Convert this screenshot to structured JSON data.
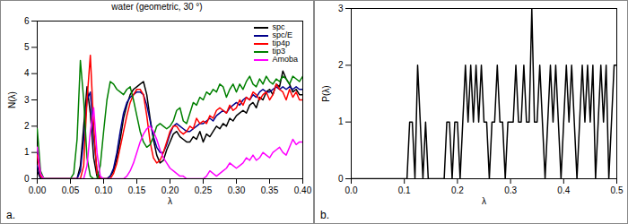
{
  "chart_data": [
    {
      "type": "line",
      "title": "water (geometric, 30 °)",
      "caption": "a.",
      "x_label": "λ",
      "y_label": "N(λ)",
      "legend": "top-right",
      "x": [
        0,
        0.005,
        0.01,
        0.015,
        0.02,
        0.025,
        0.03,
        0.035,
        0.04,
        0.045,
        0.05,
        0.055,
        0.06,
        0.065,
        0.07,
        0.075,
        0.08,
        0.085,
        0.09,
        0.095,
        0.1,
        0.105,
        0.11,
        0.115,
        0.12,
        0.125,
        0.13,
        0.135,
        0.14,
        0.145,
        0.15,
        0.155,
        0.16,
        0.165,
        0.17,
        0.175,
        0.18,
        0.185,
        0.19,
        0.195,
        0.2,
        0.205,
        0.21,
        0.215,
        0.22,
        0.225,
        0.23,
        0.235,
        0.24,
        0.245,
        0.25,
        0.255,
        0.26,
        0.265,
        0.27,
        0.275,
        0.28,
        0.285,
        0.29,
        0.295,
        0.3,
        0.305,
        0.31,
        0.315,
        0.32,
        0.325,
        0.33,
        0.335,
        0.34,
        0.345,
        0.35,
        0.355,
        0.36,
        0.365,
        0.37,
        0.375,
        0.38,
        0.385,
        0.39,
        0.395,
        0.4
      ],
      "series": [
        {
          "name": "spc",
          "color": "#000000",
          "values": [
            0.3,
            0,
            0,
            0,
            0,
            0,
            0,
            0,
            0,
            0,
            0,
            0,
            0,
            0.5,
            2.0,
            3.5,
            2.5,
            0.8,
            0.1,
            0,
            0,
            0,
            0.1,
            0.3,
            0.8,
            1.5,
            2.3,
            2.8,
            3.2,
            3.4,
            3.5,
            3.6,
            3.7,
            3.2,
            2.3,
            1.5,
            0.9,
            0.6,
            0.7,
            1.1,
            1.4,
            1.7,
            1.8,
            1.6,
            1.5,
            1.4,
            1.4,
            1.6,
            1.5,
            1.8,
            1.4,
            1.7,
            1.6,
            1.8,
            2.0,
            1.9,
            2.1,
            2.0,
            2.3,
            2.2,
            2.4,
            2.5,
            2.6,
            2.5,
            2.8,
            2.9,
            2.7,
            3.1,
            3.0,
            3.3,
            3.4,
            3.2,
            3.6,
            3.5,
            4.1,
            3.8,
            3.6,
            3.3,
            3.4,
            3.2,
            3.2
          ]
        },
        {
          "name": "spc/E",
          "color": "#00008b",
          "values": [
            0.5,
            0,
            0,
            0,
            0,
            0,
            0,
            0,
            0,
            0,
            0,
            0,
            0,
            0.3,
            1.5,
            3.0,
            3.3,
            1.6,
            0.3,
            0,
            0,
            0,
            0.1,
            0.4,
            1.0,
            1.8,
            2.5,
            2.9,
            3.1,
            3.2,
            3.3,
            3.3,
            3.2,
            2.8,
            2.2,
            1.6,
            1.2,
            1.0,
            1.0,
            1.3,
            1.7,
            2.0,
            2.1,
            2.0,
            1.9,
            1.8,
            1.8,
            1.9,
            2.0,
            2.1,
            2.1,
            2.2,
            2.3,
            2.2,
            2.4,
            2.5,
            2.6,
            2.5,
            2.7,
            2.8,
            2.9,
            2.8,
            3.0,
            3.1,
            3.0,
            3.2,
            3.1,
            3.3,
            3.4,
            3.3,
            3.3,
            3.4,
            3.5,
            3.4,
            3.5,
            3.4,
            3.5,
            3.4,
            3.5,
            3.4,
            3.4
          ]
        },
        {
          "name": "tip4p",
          "color": "#ff0000",
          "values": [
            0.9,
            0.1,
            0,
            0,
            0,
            0,
            0,
            0,
            0,
            0,
            0,
            0,
            0,
            0,
            0.5,
            3.0,
            4.7,
            2.0,
            0.2,
            0,
            0,
            0,
            0,
            0.2,
            0.6,
            1.2,
            1.8,
            2.4,
            2.9,
            3.2,
            3.4,
            3.4,
            3.2,
            2.4,
            1.4,
            0.8,
            0.6,
            0.7,
            1.0,
            1.4,
            1.8,
            2.0,
            2.0,
            1.8,
            1.7,
            1.8,
            2.0,
            1.9,
            2.3,
            2.1,
            2.2,
            2.1,
            2.4,
            2.3,
            2.6,
            2.7,
            2.6,
            2.5,
            2.8,
            2.6,
            2.7,
            3.0,
            2.8,
            3.1,
            3.0,
            3.3,
            3.2,
            3.0,
            3.2,
            3.3,
            3.0,
            3.2,
            3.6,
            3.4,
            3.3,
            3.0,
            3.4,
            3.1,
            3.3,
            3.0,
            3.0
          ]
        },
        {
          "name": "tip3",
          "color": "#008000",
          "values": [
            1.9,
            0.3,
            0,
            0,
            0,
            0,
            0,
            0,
            0,
            0,
            0,
            0.2,
            1.5,
            4.5,
            3.0,
            0.8,
            0.1,
            0,
            0,
            0.5,
            1.8,
            3.0,
            3.7,
            3.6,
            3.4,
            3.3,
            3.2,
            3.4,
            3.5,
            3.0,
            2.4,
            1.8,
            1.4,
            1.2,
            1.3,
            1.6,
            2.0,
            2.1,
            2.0,
            1.9,
            2.0,
            2.2,
            2.6,
            2.7,
            2.2,
            2.1,
            2.5,
            2.9,
            2.8,
            3.1,
            3.0,
            3.3,
            3.2,
            3.4,
            3.3,
            3.6,
            3.5,
            3.1,
            3.4,
            3.6,
            3.3,
            3.6,
            3.4,
            3.7,
            3.9,
            3.6,
            3.5,
            3.8,
            3.6,
            3.9,
            3.7,
            3.6,
            3.8,
            3.7,
            3.9,
            3.8,
            3.6,
            3.9,
            3.8,
            3.7,
            3.9
          ]
        },
        {
          "name": "Amoba",
          "color": "#ff00ff",
          "values": [
            1.2,
            0.2,
            0,
            0,
            0,
            0,
            0,
            0,
            0,
            0,
            0,
            0,
            0,
            0,
            0,
            0.5,
            1.8,
            2.7,
            1.0,
            0.1,
            0,
            0,
            0,
            0,
            0,
            0,
            0,
            0.1,
            0.3,
            0.6,
            1.0,
            1.4,
            1.7,
            1.9,
            2.0,
            1.8,
            1.5,
            1.1,
            0.8,
            0.6,
            0.4,
            0.3,
            0.2,
            0.1,
            0.1,
            0,
            0,
            0,
            0,
            0,
            0,
            0.1,
            0.3,
            0.2,
            0.1,
            0.2,
            0.3,
            0.4,
            0.6,
            0.5,
            0.4,
            0.5,
            0.6,
            0.8,
            0.7,
            0.9,
            0.7,
            0.8,
            1.0,
            0.9,
            0.8,
            1.0,
            1.1,
            1.2,
            1.0,
            0.9,
            1.2,
            1.5,
            1.3,
            1.4,
            1.4
          ]
        }
      ],
      "xlim": [
        0,
        0.4
      ],
      "xticks": [
        {
          "value": 0,
          "label": "0.00"
        },
        {
          "value": 0.05,
          "label": "0.05"
        },
        {
          "value": 0.1,
          "label": "0.10"
        },
        {
          "value": 0.15,
          "label": "0.15"
        },
        {
          "value": 0.2,
          "label": "0.20"
        },
        {
          "value": 0.25,
          "label": "0.25"
        },
        {
          "value": 0.3,
          "label": "0.30"
        },
        {
          "value": 0.35,
          "label": "0.35"
        },
        {
          "value": 0.4,
          "label": "0.40"
        }
      ],
      "ylim": [
        0,
        6
      ],
      "yticks": [
        0,
        1,
        2,
        3,
        4,
        5,
        6
      ]
    },
    {
      "type": "line",
      "caption": "b.",
      "x_label": "λ",
      "y_label": "P(λ)",
      "x": [
        0,
        0.005,
        0.01,
        0.015,
        0.02,
        0.025,
        0.03,
        0.035,
        0.04,
        0.045,
        0.05,
        0.055,
        0.06,
        0.065,
        0.07,
        0.075,
        0.08,
        0.085,
        0.09,
        0.095,
        0.1,
        0.105,
        0.11,
        0.115,
        0.12,
        0.125,
        0.13,
        0.135,
        0.14,
        0.145,
        0.15,
        0.155,
        0.16,
        0.165,
        0.17,
        0.175,
        0.18,
        0.185,
        0.19,
        0.195,
        0.2,
        0.205,
        0.21,
        0.215,
        0.22,
        0.225,
        0.23,
        0.235,
        0.24,
        0.245,
        0.25,
        0.255,
        0.26,
        0.265,
        0.27,
        0.275,
        0.28,
        0.285,
        0.29,
        0.295,
        0.3,
        0.305,
        0.31,
        0.315,
        0.32,
        0.325,
        0.33,
        0.335,
        0.34,
        0.345,
        0.35,
        0.355,
        0.36,
        0.365,
        0.37,
        0.375,
        0.38,
        0.385,
        0.39,
        0.395,
        0.4,
        0.405,
        0.41,
        0.415,
        0.42,
        0.425,
        0.43,
        0.435,
        0.44,
        0.445,
        0.45,
        0.455,
        0.46,
        0.465,
        0.47,
        0.475,
        0.48,
        0.485,
        0.49,
        0.495,
        0.5
      ],
      "series": [
        {
          "name": "P(λ)",
          "color": "#000000",
          "values": [
            0,
            0,
            0,
            0,
            0,
            0,
            0,
            0,
            0,
            0,
            0,
            0,
            0,
            0,
            0,
            0,
            0,
            0,
            0,
            0,
            0,
            0,
            1,
            1,
            0,
            2,
            1,
            0,
            1,
            0,
            0,
            0,
            0,
            0,
            0,
            0,
            1,
            1,
            0,
            1,
            1,
            0,
            1,
            2,
            1,
            2,
            1,
            2,
            1,
            2,
            1,
            1,
            0,
            1,
            1,
            2,
            1,
            1,
            0,
            1,
            1,
            1,
            2,
            1,
            1,
            2,
            1,
            1,
            3,
            1,
            1,
            2,
            1,
            0,
            1,
            2,
            1,
            2,
            1,
            0,
            1,
            2,
            1,
            2,
            1,
            0,
            1,
            2,
            1,
            2,
            1,
            2,
            0,
            1,
            2,
            1,
            2,
            0,
            1,
            2,
            2
          ]
        }
      ],
      "xlim": [
        0,
        0.5
      ],
      "xticks": [
        {
          "value": 0,
          "label": "0.0"
        },
        {
          "value": 0.1,
          "label": "0.1"
        },
        {
          "value": 0.2,
          "label": "0.2"
        },
        {
          "value": 0.3,
          "label": "0.3"
        },
        {
          "value": 0.4,
          "label": "0.4"
        },
        {
          "value": 0.5,
          "label": "0.5"
        }
      ],
      "ylim": [
        0,
        3
      ],
      "yticks": [
        0,
        1,
        2,
        3
      ]
    }
  ]
}
